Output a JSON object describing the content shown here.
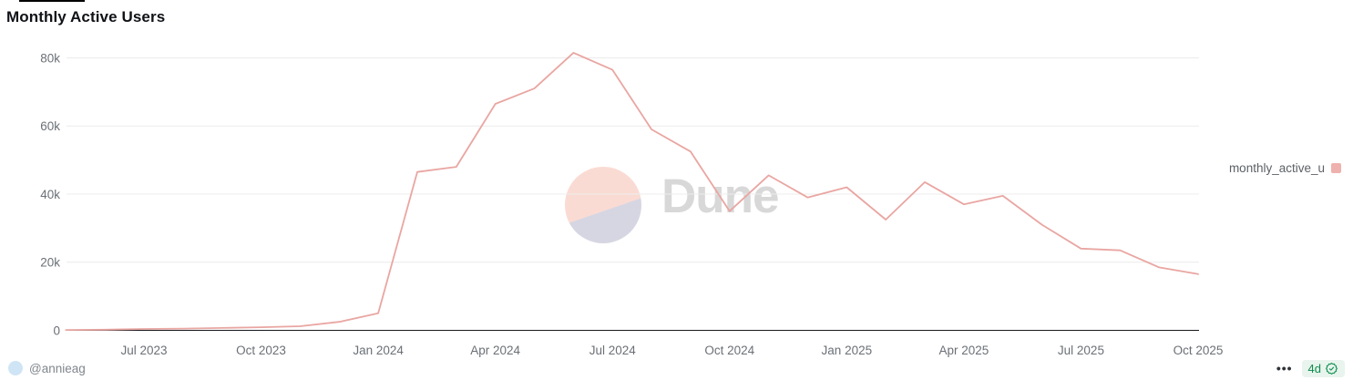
{
  "page": {
    "title": "Monthly Active Users"
  },
  "chart_data": {
    "type": "line",
    "title": "Monthly Active Users",
    "xlabel": "",
    "ylabel": "",
    "grid": true,
    "legend_position": "right",
    "ylim": [
      0,
      85000
    ],
    "x": [
      "May 2023",
      "Jun 2023",
      "Jul 2023",
      "Aug 2023",
      "Sep 2023",
      "Oct 2023",
      "Nov 2023",
      "Dec 2023",
      "Jan 2024",
      "Feb 2024",
      "Mar 2024",
      "Apr 2024",
      "May 2024",
      "Jun 2024",
      "Jul 2024",
      "Aug 2024",
      "Sep 2024",
      "Oct 2024",
      "Nov 2024",
      "Dec 2024",
      "Jan 2025",
      "Feb 2025",
      "Mar 2025",
      "Apr 2025",
      "May 2025",
      "Jun 2025",
      "Jul 2025",
      "Aug 2025",
      "Sep 2025",
      "Oct 2025"
    ],
    "series": [
      {
        "name": "monthly_active_u",
        "color": "#e9a6a2",
        "values": [
          100,
          200,
          400,
          500,
          700,
          900,
          1200,
          2500,
          5000,
          46500,
          48000,
          66500,
          71000,
          81500,
          76500,
          59000,
          52500,
          35000,
          45500,
          39000,
          42000,
          32500,
          43500,
          37000,
          39500,
          31000,
          24000,
          23500,
          18500,
          16500
        ]
      }
    ],
    "x_ticks": [
      {
        "index": 2,
        "label": "Jul 2023"
      },
      {
        "index": 5,
        "label": "Oct 2023"
      },
      {
        "index": 8,
        "label": "Jan 2024"
      },
      {
        "index": 11,
        "label": "Apr 2024"
      },
      {
        "index": 14,
        "label": "Jul 2024"
      },
      {
        "index": 17,
        "label": "Oct 2024"
      },
      {
        "index": 20,
        "label": "Jan 2025"
      },
      {
        "index": 23,
        "label": "Apr 2025"
      },
      {
        "index": 26,
        "label": "Jul 2025"
      },
      {
        "index": 29,
        "label": "Oct 2025"
      }
    ],
    "y_ticks": [
      {
        "value": 0,
        "label": "0"
      },
      {
        "value": 20000,
        "label": "20k"
      },
      {
        "value": 40000,
        "label": "40k"
      },
      {
        "value": 60000,
        "label": "60k"
      },
      {
        "value": 80000,
        "label": "80k"
      }
    ]
  },
  "legend": {
    "label": "monthly_active_u",
    "swatch_color": "#efb1ae"
  },
  "watermark": {
    "text": "Dune"
  },
  "footer": {
    "author": "@annieag",
    "menu": "•••",
    "badge_text": "4d"
  },
  "colors": {
    "line": "#e9a6a2",
    "grid": "#ececec",
    "axis_line": "#17181c",
    "tick_label": "#6b7076",
    "badge_bg": "#e8f4ed",
    "badge_green": "#0f8a4e",
    "watermark_peach": "#fadbd3",
    "watermark_lavender": "#d6d6e3"
  }
}
